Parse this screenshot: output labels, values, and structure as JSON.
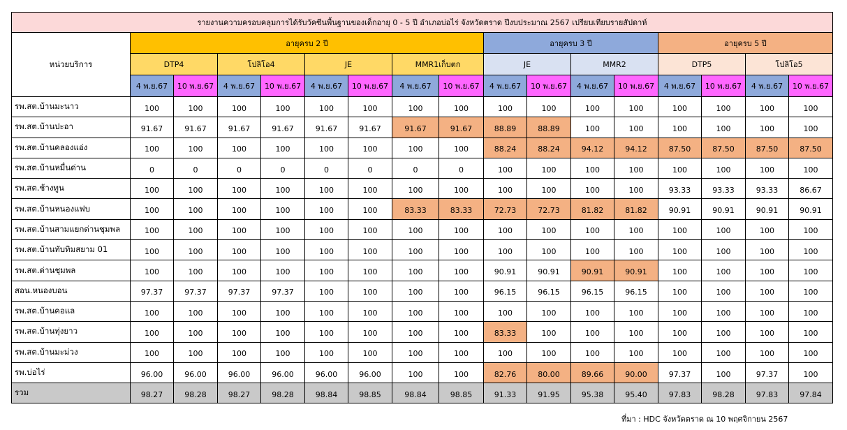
{
  "title": "รายงานความครอบคลุมการได้รับวัคซีนพื้นฐานของเด็กอายุ 0 - 5 ปี อำเภอบ่อไร่ จังหวัดตราด ปีงบประมาณ 2567 เปรียบเทียบรายสัปดาห์",
  "unit_header": "หน่วยบริการ",
  "age_groups": [
    "อายุครบ 2 ปี",
    "อายุครบ 3 ปี",
    "อายุครบ 5 ปี"
  ],
  "vaccines": [
    "DTP4",
    "โปลิโอ4",
    "JE",
    "MMR1เก็บตก",
    "JE",
    "MMR2",
    "DTP5",
    "โปลิโอ5"
  ],
  "dates": [
    "4 พ.ย.67",
    "10 พ.ย.67"
  ],
  "highlight_color": "#f4b183",
  "rows": [
    {
      "name": "รพ.สต.บ้านมะนาว",
      "values": [
        "100",
        "100",
        "100",
        "100",
        "100",
        "100",
        "100",
        "100",
        "100",
        "100",
        "100",
        "100",
        "100",
        "100",
        "100",
        "100"
      ],
      "hl": []
    },
    {
      "name": "รพ.สต.บ้านปะอา",
      "values": [
        "91.67",
        "91.67",
        "91.67",
        "91.67",
        "91.67",
        "91.67",
        "91.67",
        "91.67",
        "88.89",
        "88.89",
        "100",
        "100",
        "100",
        "100",
        "100",
        "100"
      ],
      "hl": [
        6,
        7,
        8,
        9
      ]
    },
    {
      "name": "รพ.สต.บ้านคลองแอ่ง",
      "values": [
        "100",
        "100",
        "100",
        "100",
        "100",
        "100",
        "100",
        "100",
        "88.24",
        "88.24",
        "94.12",
        "94.12",
        "87.50",
        "87.50",
        "87.50",
        "87.50"
      ],
      "hl": [
        8,
        9,
        10,
        11,
        12,
        13,
        14,
        15
      ]
    },
    {
      "name": "รพ.สต.บ้านหมื่นด่าน",
      "values": [
        "0",
        "0",
        "0",
        "0",
        "0",
        "0",
        "0",
        "0",
        "100",
        "100",
        "100",
        "100",
        "100",
        "100",
        "100",
        "100"
      ],
      "hl": []
    },
    {
      "name": "รพ.สต.ช้างทูน",
      "values": [
        "100",
        "100",
        "100",
        "100",
        "100",
        "100",
        "100",
        "100",
        "100",
        "100",
        "100",
        "100",
        "93.33",
        "93.33",
        "93.33",
        "86.67"
      ],
      "hl": []
    },
    {
      "name": "รพ.สต.บ้านหนองแฟบ",
      "values": [
        "100",
        "100",
        "100",
        "100",
        "100",
        "100",
        "83.33",
        "83.33",
        "72.73",
        "72.73",
        "81.82",
        "81.82",
        "90.91",
        "90.91",
        "90.91",
        "90.91"
      ],
      "hl": [
        6,
        7,
        8,
        9,
        10,
        11
      ]
    },
    {
      "name": "รพ.สต.บ้านสามแยกด่านชุมพล",
      "values": [
        "100",
        "100",
        "100",
        "100",
        "100",
        "100",
        "100",
        "100",
        "100",
        "100",
        "100",
        "100",
        "100",
        "100",
        "100",
        "100"
      ],
      "hl": []
    },
    {
      "name": "รพ.สต.บ้านทับทิมสยาม 01",
      "values": [
        "100",
        "100",
        "100",
        "100",
        "100",
        "100",
        "100",
        "100",
        "100",
        "100",
        "100",
        "100",
        "100",
        "100",
        "100",
        "100"
      ],
      "hl": []
    },
    {
      "name": "รพ.สต.ด่านชุมพล",
      "values": [
        "100",
        "100",
        "100",
        "100",
        "100",
        "100",
        "100",
        "100",
        "90.91",
        "90.91",
        "90.91",
        "90.91",
        "100",
        "100",
        "100",
        "100"
      ],
      "hl": [
        10,
        11
      ]
    },
    {
      "name": "สอน.หนองบอน",
      "values": [
        "97.37",
        "97.37",
        "97.37",
        "97.37",
        "100",
        "100",
        "100",
        "100",
        "96.15",
        "96.15",
        "96.15",
        "96.15",
        "100",
        "100",
        "100",
        "100"
      ],
      "hl": []
    },
    {
      "name": "รพ.สต.บ้านคอแล",
      "values": [
        "100",
        "100",
        "100",
        "100",
        "100",
        "100",
        "100",
        "100",
        "100",
        "100",
        "100",
        "100",
        "100",
        "100",
        "100",
        "100"
      ],
      "hl": []
    },
    {
      "name": "รพ.สต.บ้านทุ่งยาว",
      "values": [
        "100",
        "100",
        "100",
        "100",
        "100",
        "100",
        "100",
        "100",
        "83.33",
        "100",
        "100",
        "100",
        "100",
        "100",
        "100",
        "100"
      ],
      "hl": [
        8
      ]
    },
    {
      "name": "รพ.สต.บ้านมะม่วง",
      "values": [
        "100",
        "100",
        "100",
        "100",
        "100",
        "100",
        "100",
        "100",
        "100",
        "100",
        "100",
        "100",
        "100",
        "100",
        "100",
        "100"
      ],
      "hl": []
    },
    {
      "name": "รพ.บ่อไร่",
      "values": [
        "96.00",
        "96.00",
        "96.00",
        "96.00",
        "96.00",
        "96.00",
        "100",
        "100",
        "82.76",
        "80.00",
        "89.66",
        "90.00",
        "97.37",
        "100",
        "97.37",
        "100"
      ],
      "hl": [
        8,
        9,
        10,
        11
      ]
    }
  ],
  "total": {
    "name": "รวม",
    "values": [
      "98.27",
      "98.28",
      "98.27",
      "98.28",
      "98.84",
      "98.85",
      "98.84",
      "98.85",
      "91.33",
      "91.95",
      "95.38",
      "95.40",
      "97.83",
      "98.28",
      "97.83",
      "97.84"
    ]
  },
  "source": "ที่มา : HDC จังหวัดตราด ณ 10 พฤศจิกายน 2567"
}
